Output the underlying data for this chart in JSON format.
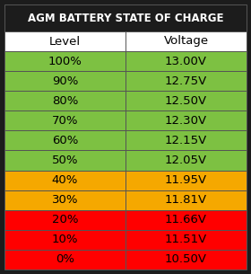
{
  "title": "AGM BATTERY STATE OF CHARGE",
  "title_bg": "#1c1c1c",
  "title_color": "#ffffff",
  "header_bg": "#ffffff",
  "header_color": "#000000",
  "headers": [
    "Level",
    "Voltage"
  ],
  "rows": [
    {
      "level": "100%",
      "voltage": "13.00V",
      "color": "#7dc142"
    },
    {
      "level": "90%",
      "voltage": "12.75V",
      "color": "#7dc142"
    },
    {
      "level": "80%",
      "voltage": "12.50V",
      "color": "#7dc142"
    },
    {
      "level": "70%",
      "voltage": "12.30V",
      "color": "#7dc142"
    },
    {
      "level": "60%",
      "voltage": "12.15V",
      "color": "#7dc142"
    },
    {
      "level": "50%",
      "voltage": "12.05V",
      "color": "#7dc142"
    },
    {
      "level": "40%",
      "voltage": "11.95V",
      "color": "#f5a800"
    },
    {
      "level": "30%",
      "voltage": "11.81V",
      "color": "#f5a800"
    },
    {
      "level": "20%",
      "voltage": "11.66V",
      "color": "#ff0000"
    },
    {
      "level": "10%",
      "voltage": "11.51V",
      "color": "#ff0000"
    },
    {
      "level": "0%",
      "voltage": "10.50V",
      "color": "#ff0000"
    }
  ],
  "border_color": "#555555",
  "text_color_data": "#000000",
  "font_size_title": 8.5,
  "font_size_header": 9.5,
  "font_size_data": 9.5
}
